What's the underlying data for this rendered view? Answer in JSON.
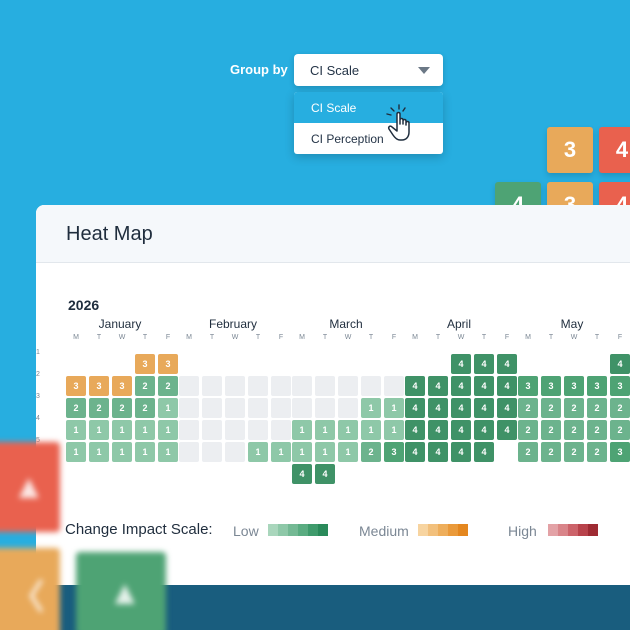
{
  "colors": {
    "background": "#27aee0",
    "scale_low": [
      "#a9d6bc",
      "#8ec8a8",
      "#74b994",
      "#5aac81",
      "#3f9b6c",
      "#2a8a5a"
    ],
    "scale_medium": [
      "#f7d4a0",
      "#f2c07c",
      "#eeae5b",
      "#ea9a3a",
      "#e4871f"
    ],
    "scale_high": [
      "#e3a2a6",
      "#d98489",
      "#cc636a",
      "#b8434b",
      "#9e2b33"
    ]
  },
  "controls": {
    "group_by_label": "Group by",
    "group_by_value": "CI Scale",
    "options": [
      "CI Scale",
      "CI Perception"
    ]
  },
  "floating_tiles": [
    "3",
    "4",
    "4",
    "3",
    "4"
  ],
  "heatmap": {
    "title": "Heat Map",
    "year": "2026",
    "weekday_labels": [
      "M",
      "T",
      "W",
      "T",
      "F"
    ],
    "week_numbers": [
      "1",
      "2",
      "3",
      "4",
      "5",
      "6"
    ],
    "months": [
      {
        "name": "January",
        "weeks": [
          [
            "",
            "",
            "",
            "3",
            "3"
          ],
          [
            "3",
            "3",
            "3",
            "2",
            "2"
          ],
          [
            "2",
            "2",
            "2",
            "2",
            "1"
          ],
          [
            "1",
            "1",
            "1",
            "1",
            "1"
          ],
          [
            "1",
            "1",
            "1",
            "1",
            "1"
          ],
          []
        ]
      },
      {
        "name": "February",
        "weeks": [
          [],
          [
            "-",
            "-",
            "-",
            "-",
            "-"
          ],
          [
            "-",
            "-",
            "-",
            "-",
            "-"
          ],
          [
            "-",
            "-",
            "-",
            "-",
            "-"
          ],
          [
            "-",
            "-",
            "-",
            "1",
            "1"
          ],
          []
        ]
      },
      {
        "name": "March",
        "weeks": [
          [],
          [
            "-",
            "-",
            "-",
            "-",
            "-"
          ],
          [
            "-",
            "-",
            "-",
            "1",
            "1"
          ],
          [
            "1",
            "1",
            "1",
            "1",
            "1"
          ],
          [
            "1",
            "1",
            "1",
            "2",
            "3"
          ],
          [
            "4",
            "4"
          ]
        ]
      },
      {
        "name": "April",
        "weeks": [
          [
            "",
            "",
            "4",
            "4",
            "4"
          ],
          [
            "4",
            "4",
            "4",
            "4",
            "4"
          ],
          [
            "4",
            "4",
            "4",
            "4",
            "4"
          ],
          [
            "4",
            "4",
            "4",
            "4",
            "4"
          ],
          [
            "4",
            "4",
            "4",
            "4",
            ""
          ],
          []
        ]
      },
      {
        "name": "May",
        "weeks": [
          [
            "",
            "",
            "",
            "",
            "4"
          ],
          [
            "3",
            "3",
            "3",
            "3",
            "3"
          ],
          [
            "2",
            "2",
            "2",
            "2",
            "2"
          ],
          [
            "2",
            "2",
            "2",
            "2",
            "2"
          ],
          [
            "2",
            "2",
            "2",
            "2",
            "3"
          ],
          []
        ]
      }
    ],
    "legend": {
      "title": "Change Impact Scale:",
      "low": "Low",
      "medium": "Medium",
      "high": "High"
    }
  }
}
